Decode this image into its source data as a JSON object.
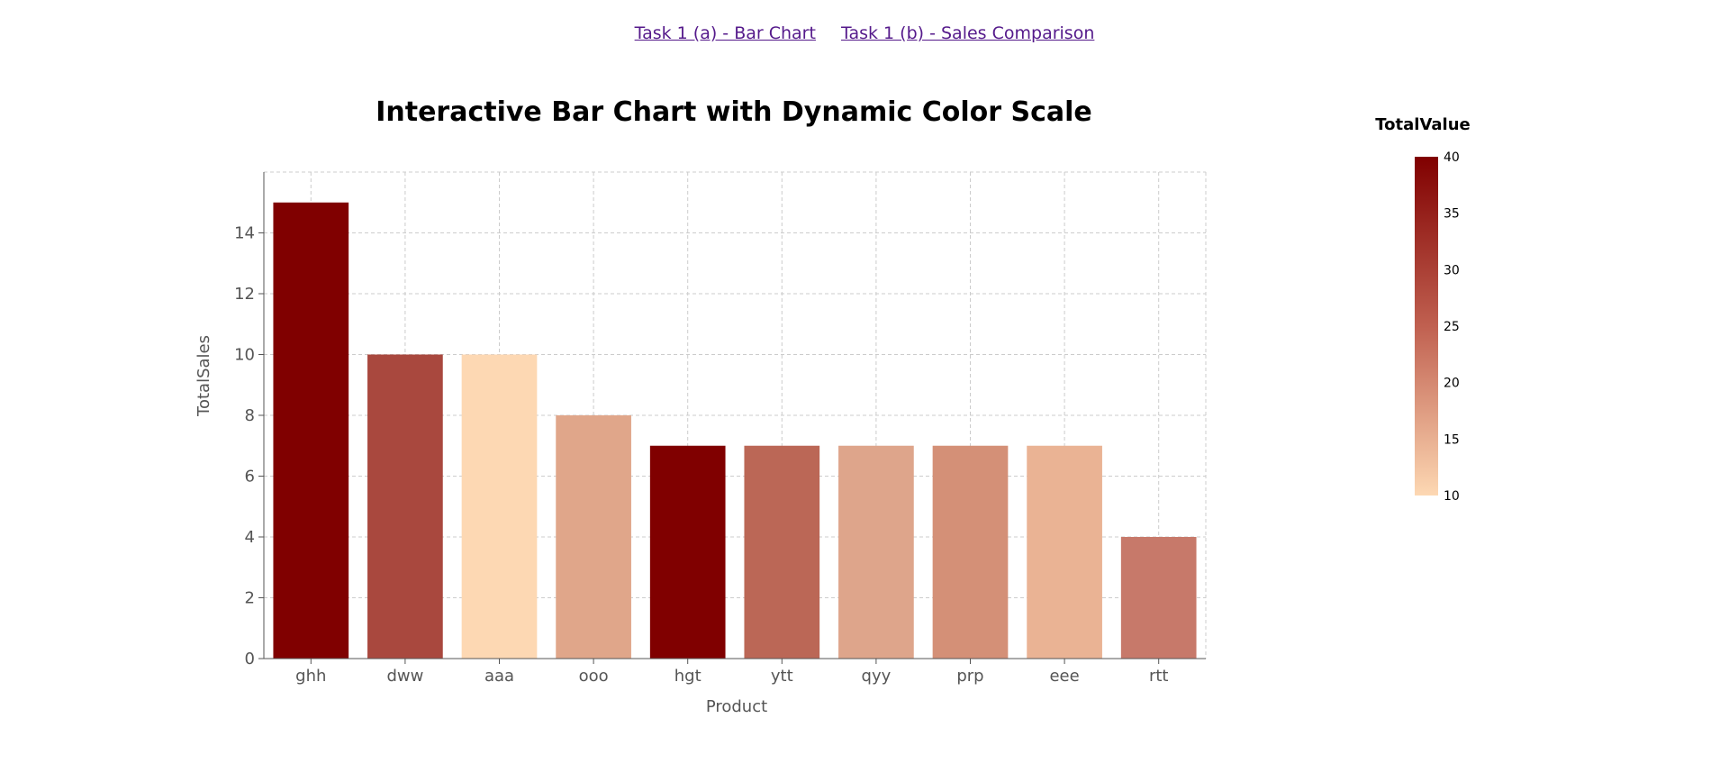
{
  "nav": {
    "links": [
      "Task 1 (a) - Bar Chart",
      "Task 1 (b) - Sales Comparison"
    ]
  },
  "chart_data": {
    "type": "bar",
    "title": "Interactive Bar Chart with Dynamic Color Scale",
    "xlabel": "Product",
    "ylabel": "TotalSales",
    "categories": [
      "ghh",
      "dww",
      "aaa",
      "ooo",
      "hgt",
      "ytt",
      "qyy",
      "prp",
      "eee",
      "rtt"
    ],
    "values": [
      15,
      10,
      10,
      8,
      7,
      7,
      7,
      7,
      7,
      4
    ],
    "bar_colors": [
      "#800000",
      "#a9483e",
      "#fdd8b3",
      "#e0a68a",
      "#800000",
      "#bb6756",
      "#dea58b",
      "#d49077",
      "#eab394",
      "#c7796a"
    ],
    "ylim": [
      0,
      16
    ],
    "yticks": [
      0,
      2,
      4,
      6,
      8,
      10,
      12,
      14
    ],
    "grid": true,
    "legend": {
      "title": "TotalValue",
      "min": 10,
      "max": 40,
      "ticks": [
        10,
        15,
        20,
        25,
        30,
        35,
        40
      ],
      "color_low": "#fdd8b3",
      "color_mid": "#c06050",
      "color_high": "#800000",
      "placement": "right"
    }
  }
}
